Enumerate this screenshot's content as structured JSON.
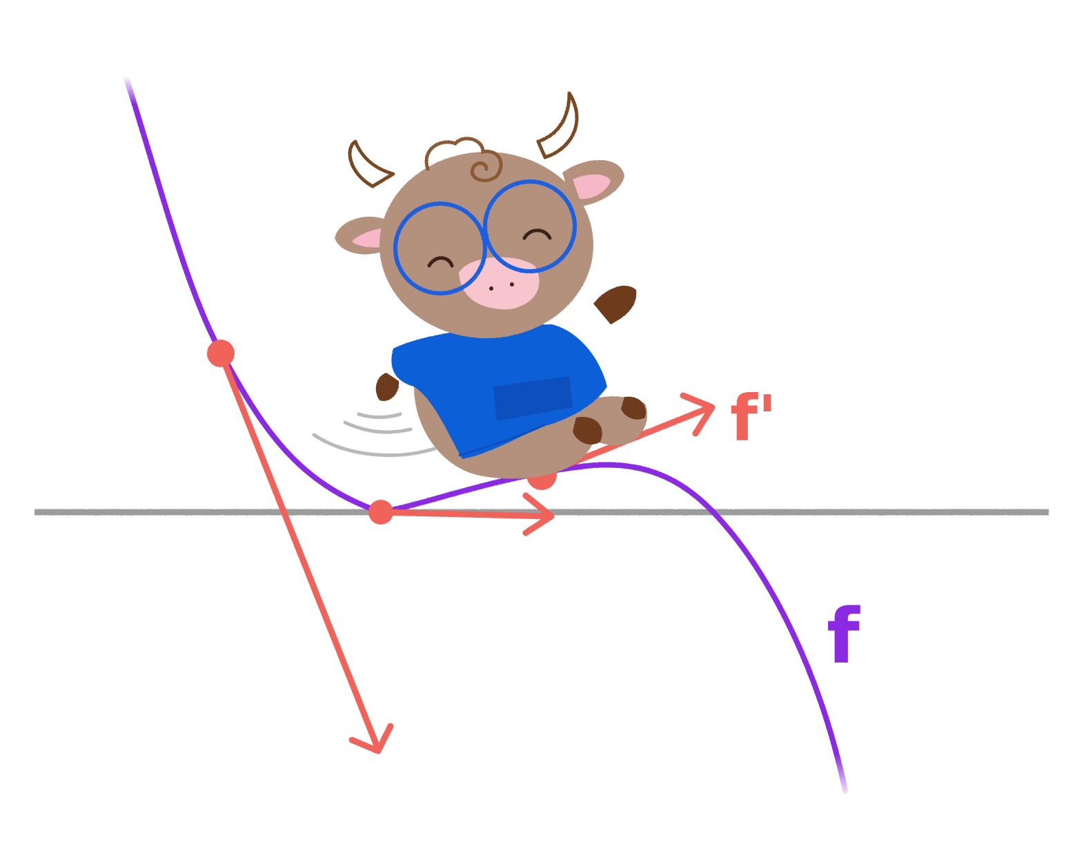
{
  "colors": {
    "background": "#ffffff",
    "grid": "#a8a8a8",
    "axis": "#9c9c9c",
    "curve": "#8a2be2",
    "tangent": "#f0635a",
    "cow_fur": "#b3917c",
    "cow_ear_inner": "#f6b7c7",
    "cow_horn_line": "#7a4a22",
    "cow_hair": "#8a5a34",
    "cow_hoof": "#6e3a1d",
    "glasses": "#1c5ee0",
    "sweater": "#0e5fd8",
    "sweater_shadow": "#0b4fbd",
    "snout": "#f8c5cf",
    "face_line": "#3b2418",
    "motion_lines": "#b9b9b9"
  },
  "labels": {
    "function": "f",
    "derivative": "f'"
  },
  "icons": {
    "character": "cow-mascot-icon",
    "arrow": "tangent-arrow-icon",
    "point": "tangent-point-icon"
  }
}
